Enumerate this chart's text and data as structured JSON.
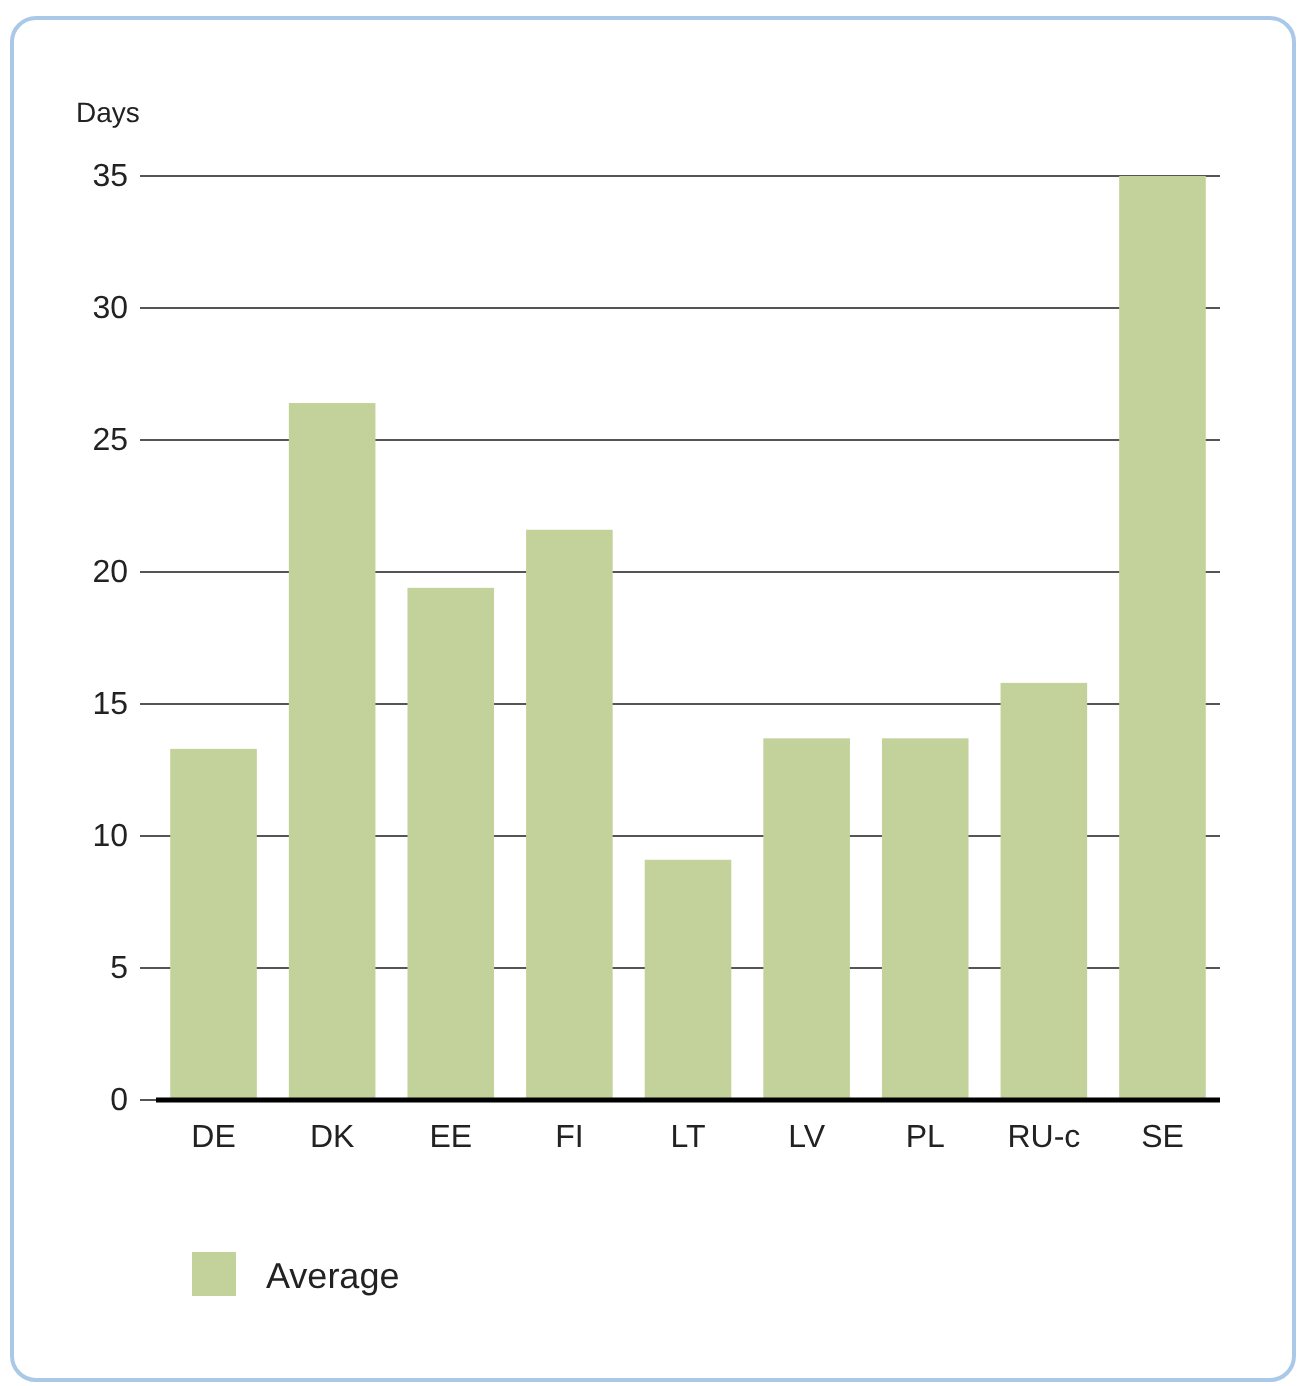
{
  "chart_data": {
    "type": "bar",
    "ylabel": "Days",
    "categories": [
      "DE",
      "DK",
      "EE",
      "FI",
      "LT",
      "LV",
      "PL",
      "RU-c",
      "SE"
    ],
    "series": [
      {
        "name": "Average",
        "color": "#c3d29a",
        "values": [
          13.3,
          26.4,
          19.4,
          21.6,
          9.1,
          13.7,
          13.7,
          15.8,
          35
        ]
      }
    ],
    "ylim": [
      0,
      35
    ],
    "yticks": [
      0,
      5,
      10,
      15,
      20,
      25,
      30,
      35
    ],
    "grid": "y",
    "legend": "bottom left"
  }
}
